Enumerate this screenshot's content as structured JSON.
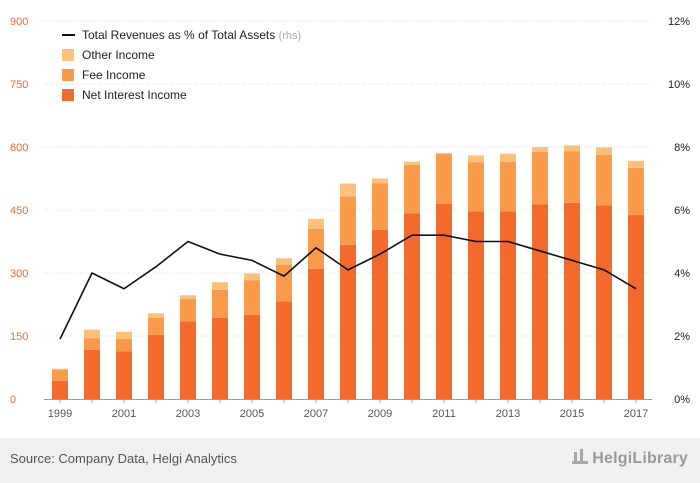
{
  "chart_data": {
    "type": "bar",
    "stacked": true,
    "x_labels": [
      "1999",
      "2001",
      "2003",
      "2005",
      "2007",
      "2009",
      "2011",
      "2013",
      "2015",
      "2017"
    ],
    "categories": [
      "1999",
      "2000",
      "2001",
      "2002",
      "2003",
      "2004",
      "2005",
      "2006",
      "2007",
      "2008",
      "2009",
      "2010",
      "2011",
      "2012",
      "2013",
      "2014",
      "2015",
      "2016",
      "2017"
    ],
    "series": [
      {
        "name": "Net Interest Income",
        "axis": "left",
        "color": "#f26a2e",
        "values": [
          43,
          117,
          113,
          153,
          185,
          193,
          200,
          232,
          310,
          367,
          403,
          442,
          465,
          447,
          447,
          463,
          467,
          461,
          438
        ]
      },
      {
        "name": "Fee Income",
        "axis": "left",
        "color": "#f79a4a",
        "values": [
          26,
          28,
          30,
          40,
          53,
          67,
          83,
          88,
          95,
          115,
          110,
          115,
          118,
          117,
          118,
          125,
          123,
          120,
          112
        ]
      },
      {
        "name": "Other Income",
        "axis": "left",
        "color": "#fbc07c",
        "values": [
          3,
          20,
          17,
          11,
          9,
          18,
          16,
          15,
          24,
          31,
          12,
          8,
          3,
          16,
          19,
          12,
          14,
          18,
          17
        ]
      }
    ],
    "line": {
      "name": "Total Revenues as % of Total Assets",
      "suffix": "(rhs)",
      "axis": "right",
      "color": "#111111",
      "values": [
        1.9,
        4.0,
        3.5,
        4.2,
        5.0,
        4.6,
        4.4,
        3.9,
        4.8,
        4.1,
        4.6,
        5.2,
        5.2,
        5.0,
        5.0,
        4.7,
        4.4,
        4.1,
        3.5
      ]
    },
    "y_left": {
      "min": 0,
      "max": 900,
      "ticks": [
        "0",
        "150",
        "300",
        "450",
        "600",
        "750",
        "900"
      ],
      "color": "#f26a2e"
    },
    "y_right": {
      "min": 0,
      "max": 12,
      "ticks": [
        "0%",
        "2%",
        "4%",
        "6%",
        "8%",
        "10%",
        "12%"
      ],
      "color": "#222222"
    },
    "legend": "top-left",
    "grid": true
  },
  "legend_items": [
    {
      "label": "Total Revenues as % of Total Assets",
      "suffix": "(rhs)",
      "kind": "line",
      "color": "#111111"
    },
    {
      "label": "Other Income",
      "kind": "box",
      "color": "#fbc07c"
    },
    {
      "label": "Fee Income",
      "kind": "box",
      "color": "#f79a4a"
    },
    {
      "label": "Net Interest Income",
      "kind": "box",
      "color": "#f26a2e"
    }
  ],
  "footer": {
    "source": "Source: Company Data, Helgi Analytics",
    "brand": "HelgiLibrary"
  }
}
